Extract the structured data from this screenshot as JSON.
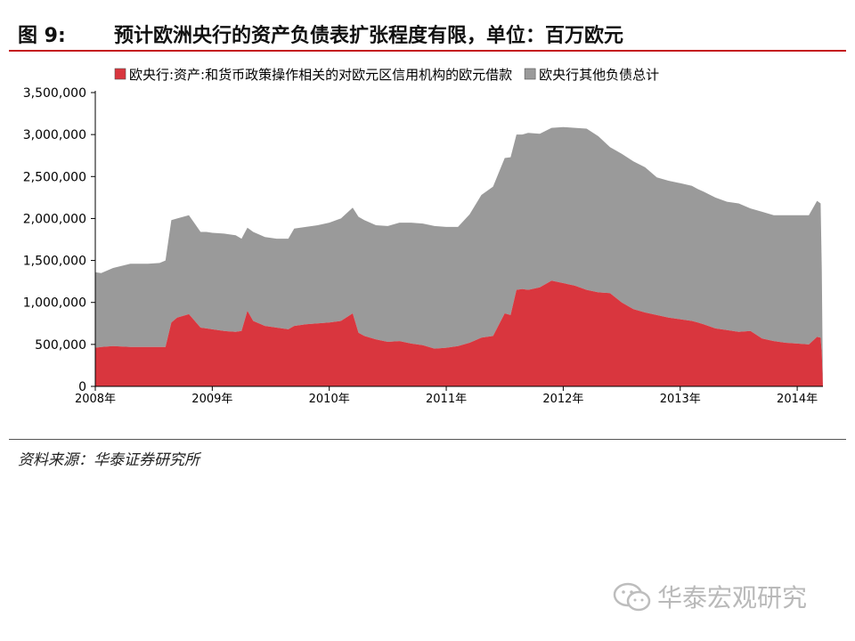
{
  "figure": {
    "label": "图 9:",
    "title": "预计欧洲央行的资产负债表扩张程度有限，单位：百万欧元",
    "source": "资料来源：华泰证券研究所"
  },
  "watermark": {
    "text": "华泰宏观研究",
    "icon": "wechat-icon"
  },
  "chart_data": {
    "type": "area",
    "stacked": true,
    "legend_position": "top",
    "grid": false,
    "y_ticks": [
      "0",
      "500,000",
      "1,000,000",
      "1,500,000",
      "2,000,000",
      "2,500,000",
      "3,000,000",
      "3,500,000"
    ],
    "ylim": [
      0,
      3500000
    ],
    "x_ticks": [
      "2008年",
      "2009年",
      "2010年",
      "2011年",
      "2012年",
      "2013年",
      "2014年"
    ],
    "xlim": [
      2008.0,
      2014.22
    ],
    "x": [
      2008.0,
      2008.05,
      2008.15,
      2008.3,
      2008.45,
      2008.55,
      2008.6,
      2008.65,
      2008.7,
      2008.8,
      2008.9,
      2008.95,
      2009.0,
      2009.1,
      2009.2,
      2009.25,
      2009.3,
      2009.35,
      2009.45,
      2009.55,
      2009.65,
      2009.7,
      2009.8,
      2009.9,
      2010.0,
      2010.1,
      2010.2,
      2010.25,
      2010.3,
      2010.4,
      2010.5,
      2010.6,
      2010.7,
      2010.8,
      2010.9,
      2011.0,
      2011.1,
      2011.2,
      2011.3,
      2011.4,
      2011.5,
      2011.55,
      2011.6,
      2011.65,
      2011.7,
      2011.8,
      2011.9,
      2012.0,
      2012.1,
      2012.2,
      2012.3,
      2012.4,
      2012.5,
      2012.6,
      2012.7,
      2012.8,
      2012.9,
      2013.0,
      2013.1,
      2013.15,
      2013.2,
      2013.3,
      2013.4,
      2013.5,
      2013.6,
      2013.7,
      2013.8,
      2013.9,
      2014.0,
      2014.1,
      2014.17,
      2014.2,
      2014.21,
      2014.22
    ],
    "series": [
      {
        "name": "欧央行:资产:和货币政策操作相关的对欧元区信用机构的欧元借款",
        "color": "#d9363e",
        "values": [
          460000,
          470000,
          480000,
          470000,
          470000,
          470000,
          470000,
          760000,
          820000,
          860000,
          700000,
          690000,
          680000,
          660000,
          650000,
          660000,
          900000,
          780000,
          720000,
          700000,
          680000,
          720000,
          740000,
          750000,
          760000,
          780000,
          870000,
          640000,
          600000,
          560000,
          530000,
          540000,
          510000,
          490000,
          450000,
          460000,
          480000,
          520000,
          580000,
          600000,
          870000,
          850000,
          1150000,
          1160000,
          1150000,
          1180000,
          1260000,
          1230000,
          1200000,
          1150000,
          1120000,
          1110000,
          1000000,
          920000,
          880000,
          850000,
          820000,
          800000,
          780000,
          760000,
          740000,
          690000,
          670000,
          650000,
          660000,
          570000,
          540000,
          520000,
          510000,
          500000,
          590000,
          580000,
          400000,
          0
        ]
      },
      {
        "name": "欧央行其他负债总计",
        "color": "#9a9a9a",
        "values": [
          900000,
          880000,
          930000,
          990000,
          990000,
          1000000,
          1030000,
          1220000,
          1180000,
          1180000,
          1140000,
          1150000,
          1150000,
          1160000,
          1150000,
          1100000,
          990000,
          1060000,
          1060000,
          1060000,
          1080000,
          1160000,
          1160000,
          1170000,
          1190000,
          1220000,
          1260000,
          1380000,
          1380000,
          1360000,
          1380000,
          1410000,
          1440000,
          1450000,
          1460000,
          1440000,
          1420000,
          1530000,
          1700000,
          1780000,
          1850000,
          1880000,
          1850000,
          1840000,
          1870000,
          1830000,
          1820000,
          1860000,
          1880000,
          1920000,
          1860000,
          1740000,
          1770000,
          1760000,
          1730000,
          1640000,
          1630000,
          1620000,
          1610000,
          1590000,
          1580000,
          1560000,
          1530000,
          1530000,
          1460000,
          1510000,
          1500000,
          1520000,
          1530000,
          1540000,
          1620000,
          1600000,
          1000000,
          0
        ]
      }
    ]
  }
}
